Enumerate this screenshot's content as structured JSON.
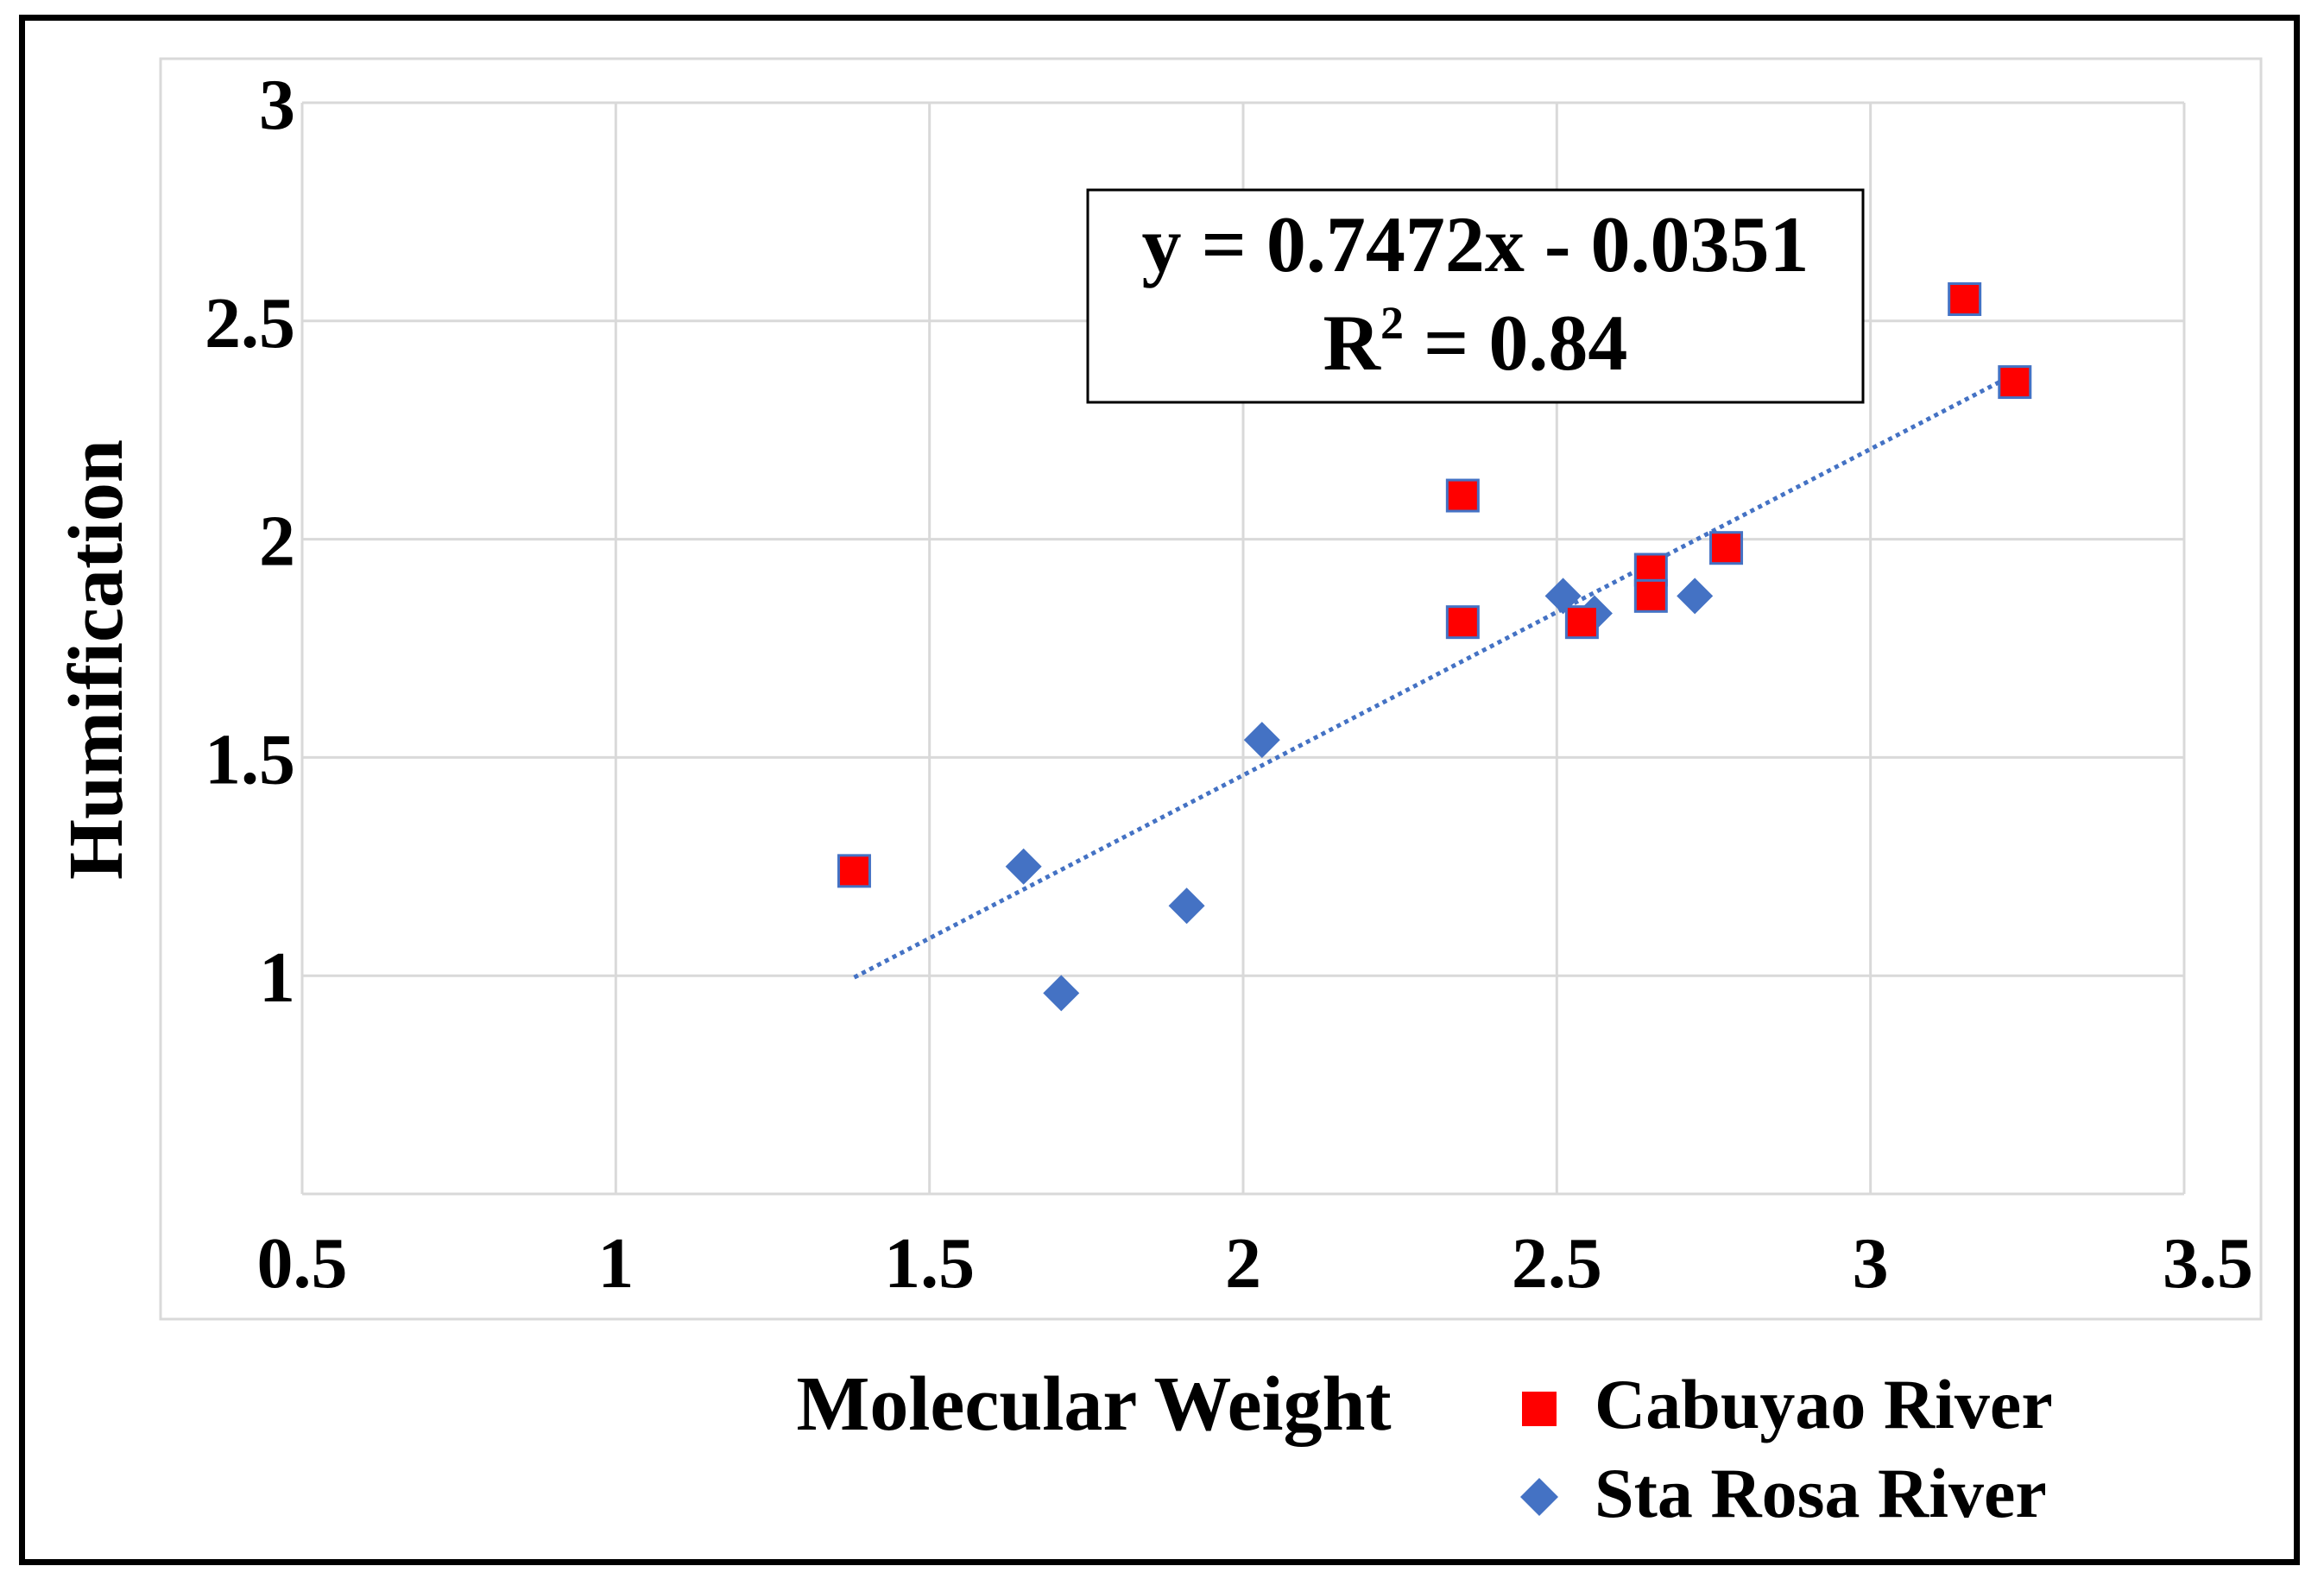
{
  "chart_data": {
    "type": "scatter",
    "xlabel": "Molecular Weight",
    "ylabel": "Humification",
    "xlim": [
      0.5,
      3.5
    ],
    "ylim": [
      0.5,
      3
    ],
    "x_ticks": [
      "0.5",
      "1",
      "1.5",
      "2",
      "2.5",
      "3",
      "3.5"
    ],
    "y_ticks": [
      "1",
      "1.5",
      "2",
      "2.5",
      "3"
    ],
    "grid": true,
    "legend_position": "bottom-right",
    "series": [
      {
        "name": "Cabuyao River",
        "marker": "square",
        "color": "#ff0000",
        "edge_color": "#4472c4",
        "points": [
          {
            "x": 1.38,
            "y": 1.24
          },
          {
            "x": 2.35,
            "y": 2.1
          },
          {
            "x": 2.35,
            "y": 1.81
          },
          {
            "x": 2.54,
            "y": 1.81
          },
          {
            "x": 2.65,
            "y": 1.93
          },
          {
            "x": 2.65,
            "y": 1.87
          },
          {
            "x": 2.77,
            "y": 1.98
          },
          {
            "x": 3.15,
            "y": 2.55
          },
          {
            "x": 3.23,
            "y": 2.36
          }
        ]
      },
      {
        "name": "Sta Rosa River",
        "marker": "diamond",
        "color": "#4472c4",
        "points": [
          {
            "x": 1.65,
            "y": 1.25
          },
          {
            "x": 1.71,
            "y": 0.96
          },
          {
            "x": 1.91,
            "y": 1.16
          },
          {
            "x": 2.03,
            "y": 1.54
          },
          {
            "x": 2.51,
            "y": 1.87
          },
          {
            "x": 2.56,
            "y": 1.83
          },
          {
            "x": 2.72,
            "y": 1.87
          }
        ]
      }
    ],
    "trendline": {
      "type": "linear",
      "style": "dotted",
      "color": "#4472c4",
      "x_range": [
        1.38,
        3.23
      ],
      "slope": 0.7472,
      "intercept": -0.0351,
      "equation": "y = 0.7472x - 0.0351",
      "r2_label": "R",
      "r2_sup": "2",
      "r2_value": " = 0.84"
    }
  }
}
